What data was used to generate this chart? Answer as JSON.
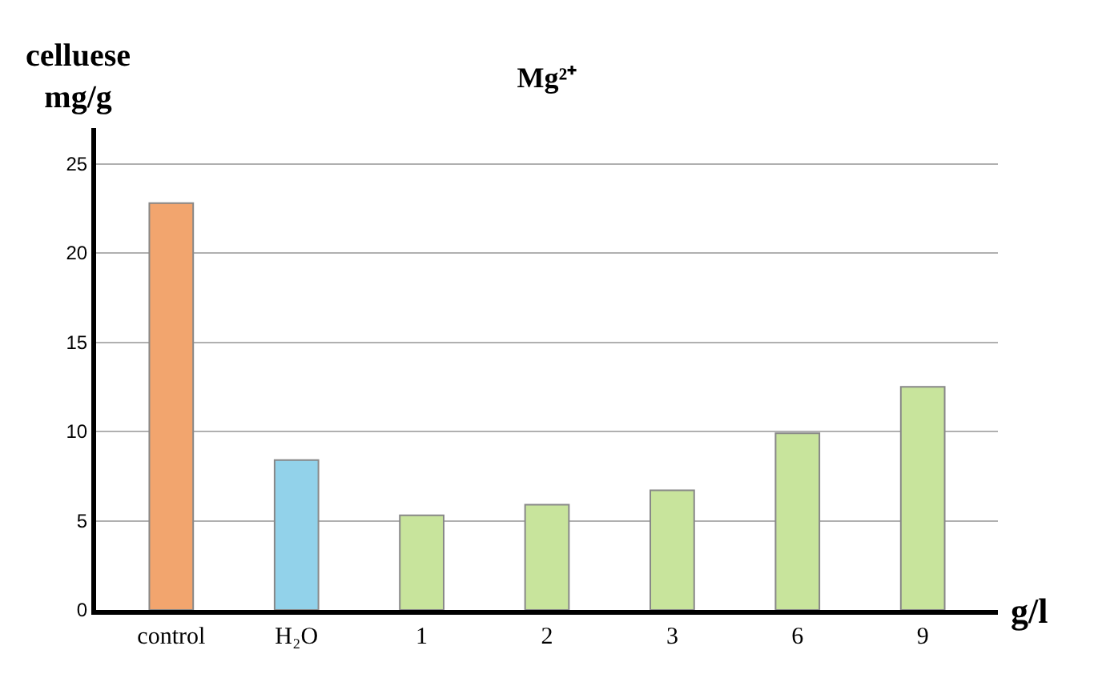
{
  "chart_data": {
    "type": "bar",
    "title": "Mg²⁺",
    "ylabel": "celluese\nmg/g",
    "xlabel": "g/l",
    "categories": [
      "control",
      "H₂O",
      "1",
      "2",
      "3",
      "6",
      "9"
    ],
    "values": [
      22.8,
      8.4,
      5.3,
      5.9,
      6.7,
      9.9,
      12.5
    ],
    "colors": [
      "#f2a56e",
      "#92d2ea",
      "#c8e49c",
      "#c8e49c",
      "#c8e49c",
      "#c8e49c",
      "#c8e49c"
    ],
    "ylim": [
      0,
      27
    ],
    "yticks": [
      0,
      5,
      10,
      15,
      20,
      25
    ],
    "grid": "y",
    "legend": false
  }
}
